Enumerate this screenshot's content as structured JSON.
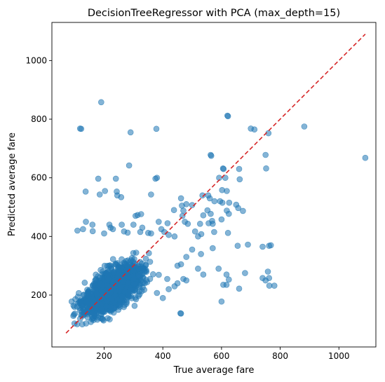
{
  "chart_data": {
    "type": "scatter",
    "title": "DecisionTreeRegressor with PCA (max_depth=15)",
    "xlabel": "True average fare",
    "ylabel": "Predicted average fare",
    "xlim": [
      22,
      1126
    ],
    "ylim": [
      23,
      1130
    ],
    "xticks": [
      200,
      400,
      600,
      800,
      1000
    ],
    "yticks": [
      200,
      400,
      600,
      800,
      1000
    ],
    "grid": false,
    "legend": "none",
    "point_color": "#1f77b4",
    "point_alpha": 0.55,
    "reference_line": {
      "x": [
        70,
        1090
      ],
      "y": [
        70,
        1090
      ],
      "color": "#d62728",
      "style": "dashed"
    },
    "dense_cluster": {
      "description_hidden": true,
      "x_range": [
        70,
        470
      ],
      "y_range": [
        75,
        400
      ],
      "center": [
        230,
        220
      ],
      "count": 1600
    },
    "series": [
      {
        "values": [
          [
            190,
            858
          ],
          [
            118,
            768
          ],
          [
            122,
            767
          ],
          [
            290,
            755
          ],
          [
            378,
            767
          ],
          [
            620,
            812
          ],
          [
            622,
            810
          ],
          [
            700,
            768
          ],
          [
            712,
            765
          ],
          [
            760,
            752
          ],
          [
            882,
            775
          ],
          [
            1090,
            668
          ],
          [
            285,
            642
          ],
          [
            180,
            597
          ],
          [
            240,
            597
          ],
          [
            375,
            597
          ],
          [
            380,
            600
          ],
          [
            203,
            555
          ],
          [
            137,
            553
          ],
          [
            243,
            553
          ],
          [
            245,
            540
          ],
          [
            258,
            534
          ],
          [
            185,
            543
          ],
          [
            360,
            543
          ],
          [
            462,
            530
          ],
          [
            563,
            678
          ],
          [
            565,
            675
          ],
          [
            605,
            632
          ],
          [
            607,
            630
          ],
          [
            592,
            600
          ],
          [
            613,
            600
          ],
          [
            660,
            630
          ],
          [
            662,
            595
          ],
          [
            750,
            678
          ],
          [
            752,
            632
          ],
          [
            602,
            558
          ],
          [
            618,
            555
          ],
          [
            555,
            540
          ],
          [
            535,
            540
          ],
          [
            560,
            530
          ],
          [
            576,
            520
          ],
          [
            595,
            520
          ],
          [
            603,
            515
          ],
          [
            626,
            515
          ],
          [
            650,
            508
          ],
          [
            657,
            497
          ],
          [
            618,
            488
          ],
          [
            625,
            477
          ],
          [
            538,
            472
          ],
          [
            552,
            489
          ],
          [
            563,
            477
          ],
          [
            568,
            453
          ],
          [
            673,
            487
          ],
          [
            480,
            510
          ],
          [
            500,
            507
          ],
          [
            465,
            505
          ],
          [
            470,
            488
          ],
          [
            438,
            490
          ],
          [
            467,
            470
          ],
          [
            475,
            450
          ],
          [
            485,
            443
          ],
          [
            600,
            458
          ],
          [
            556,
            445
          ],
          [
            570,
            443
          ],
          [
            527,
            443
          ],
          [
            314,
            473
          ],
          [
            307,
            470
          ],
          [
            326,
            476
          ],
          [
            138,
            450
          ],
          [
            160,
            440
          ],
          [
            218,
            440
          ],
          [
            222,
            430
          ],
          [
            230,
            425
          ],
          [
            260,
            440
          ],
          [
            300,
            440
          ],
          [
            330,
            430
          ],
          [
            416,
            445
          ],
          [
            386,
            450
          ],
          [
            395,
            425
          ],
          [
            405,
            415
          ],
          [
            109,
            420
          ],
          [
            128,
            425
          ],
          [
            161,
            418
          ],
          [
            200,
            410
          ],
          [
            268,
            417
          ],
          [
            280,
            413
          ],
          [
            323,
            415
          ],
          [
            350,
            412
          ],
          [
            360,
            410
          ],
          [
            420,
            405
          ],
          [
            440,
            400
          ],
          [
            510,
            417
          ],
          [
            520,
            400
          ],
          [
            531,
            408
          ],
          [
            575,
            415
          ],
          [
            622,
            412
          ],
          [
            655,
            368
          ],
          [
            690,
            372
          ],
          [
            740,
            365
          ],
          [
            762,
            368
          ],
          [
            768,
            370
          ],
          [
            570,
            360
          ],
          [
            500,
            355
          ],
          [
            530,
            340
          ],
          [
            480,
            330
          ],
          [
            462,
            305
          ],
          [
            450,
            300
          ],
          [
            415,
            255
          ],
          [
            470,
            255
          ],
          [
            480,
            250
          ],
          [
            520,
            290
          ],
          [
            538,
            270
          ],
          [
            590,
            290
          ],
          [
            617,
            270
          ],
          [
            680,
            275
          ],
          [
            758,
            280
          ],
          [
            740,
            258
          ],
          [
            750,
            250
          ],
          [
            762,
            258
          ],
          [
            763,
            232
          ],
          [
            780,
            232
          ],
          [
            606,
            235
          ],
          [
            617,
            235
          ],
          [
            625,
            253
          ],
          [
            660,
            222
          ],
          [
            600,
            178
          ],
          [
            460,
            138
          ],
          [
            462,
            137
          ],
          [
            380,
            207
          ],
          [
            440,
            230
          ],
          [
            450,
            240
          ],
          [
            420,
            220
          ],
          [
            400,
            190
          ]
        ]
      }
    ]
  }
}
